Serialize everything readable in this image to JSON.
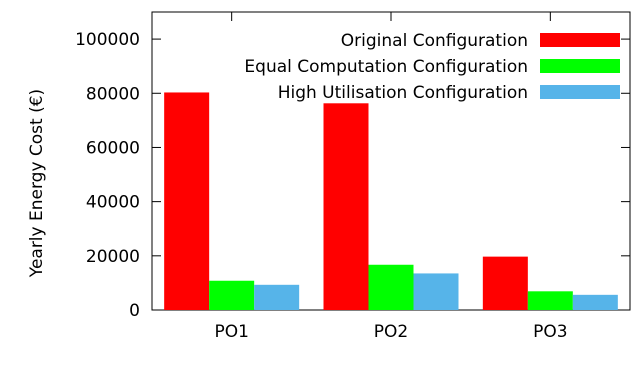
{
  "chart_data": {
    "type": "bar",
    "title": "",
    "xlabel": "",
    "ylabel": "Yearly Energy Cost (€)",
    "ylim": [
      0,
      110000
    ],
    "yticks": [
      0,
      20000,
      40000,
      60000,
      80000,
      100000
    ],
    "grid": false,
    "legend_position": "top-right",
    "categories": [
      "PO1",
      "PO2",
      "PO3"
    ],
    "series": [
      {
        "name": "Original Configuration",
        "color": "#ff0000",
        "values": [
          80300,
          76300,
          19700
        ]
      },
      {
        "name": "Equal Computation Configuration",
        "color": "#00ff00",
        "values": [
          10800,
          16700,
          6900
        ]
      },
      {
        "name": "High Utilisation Configuration",
        "color": "#56b4e9",
        "values": [
          9300,
          13500,
          5600
        ]
      }
    ]
  }
}
